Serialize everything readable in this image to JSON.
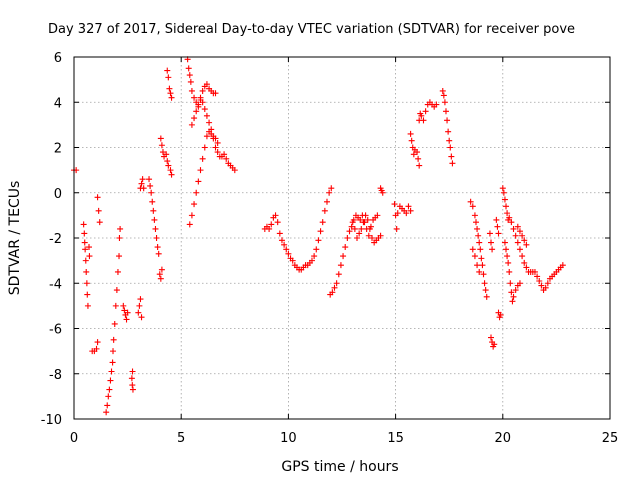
{
  "chart_data": {
    "type": "scatter",
    "title": "Day 327 of 2017, Sidereal Day-to-day VTEC variation (SDTVAR) for receiver pove",
    "xlabel": "GPS time / hours",
    "ylabel": "SDTVAR / TECUs",
    "xlim": [
      0,
      25
    ],
    "ylim": [
      -10,
      6
    ],
    "xticks": [
      "0",
      "5",
      "10",
      "15",
      "20",
      "25"
    ],
    "yticks": [
      "-10",
      "-8",
      "-6",
      "-4",
      "-2",
      "0",
      "2",
      "4",
      "6"
    ],
    "grid": true,
    "marker": "plus",
    "color": "#ff0000",
    "series": [
      {
        "name": "SDTVAR",
        "points": [
          [
            0.0,
            1.0
          ],
          [
            0.1,
            1.0
          ],
          [
            0.45,
            -1.4
          ],
          [
            0.48,
            -1.8
          ],
          [
            0.5,
            -2.2
          ],
          [
            0.52,
            -2.5
          ],
          [
            0.55,
            -3.0
          ],
          [
            0.57,
            -3.5
          ],
          [
            0.6,
            -4.0
          ],
          [
            0.62,
            -4.5
          ],
          [
            0.65,
            -5.0
          ],
          [
            0.7,
            -2.4
          ],
          [
            0.72,
            -2.8
          ],
          [
            0.85,
            -7.0
          ],
          [
            0.95,
            -7.0
          ],
          [
            1.05,
            -6.9
          ],
          [
            1.1,
            -6.6
          ],
          [
            1.1,
            -0.2
          ],
          [
            1.15,
            -0.8
          ],
          [
            1.2,
            -1.3
          ],
          [
            1.5,
            -9.7
          ],
          [
            1.55,
            -9.4
          ],
          [
            1.6,
            -9.0
          ],
          [
            1.65,
            -8.7
          ],
          [
            1.7,
            -8.3
          ],
          [
            1.75,
            -7.9
          ],
          [
            1.8,
            -7.5
          ],
          [
            1.82,
            -7.0
          ],
          [
            1.85,
            -6.5
          ],
          [
            1.9,
            -5.8
          ],
          [
            1.95,
            -5.0
          ],
          [
            2.0,
            -4.3
          ],
          [
            2.05,
            -3.5
          ],
          [
            2.1,
            -2.8
          ],
          [
            2.12,
            -2.0
          ],
          [
            2.15,
            -1.6
          ],
          [
            2.3,
            -5.0
          ],
          [
            2.35,
            -5.2
          ],
          [
            2.4,
            -5.4
          ],
          [
            2.45,
            -5.6
          ],
          [
            2.5,
            -5.3
          ],
          [
            2.7,
            -8.2
          ],
          [
            2.72,
            -8.5
          ],
          [
            2.75,
            -8.7
          ],
          [
            2.73,
            -7.9
          ],
          [
            3.0,
            -5.3
          ],
          [
            3.05,
            -5.0
          ],
          [
            3.1,
            -4.7
          ],
          [
            3.15,
            -5.5
          ],
          [
            3.1,
            0.2
          ],
          [
            3.15,
            0.4
          ],
          [
            3.2,
            0.6
          ],
          [
            3.25,
            0.2
          ],
          [
            3.5,
            0.6
          ],
          [
            3.55,
            0.3
          ],
          [
            3.6,
            0.0
          ],
          [
            3.65,
            -0.4
          ],
          [
            3.7,
            -0.8
          ],
          [
            3.75,
            -1.2
          ],
          [
            3.8,
            -1.6
          ],
          [
            3.85,
            -2.0
          ],
          [
            3.9,
            -2.4
          ],
          [
            3.95,
            -2.7
          ],
          [
            4.0,
            -3.6
          ],
          [
            4.05,
            -3.8
          ],
          [
            4.1,
            -3.4
          ],
          [
            4.05,
            2.4
          ],
          [
            4.1,
            2.1
          ],
          [
            4.15,
            1.8
          ],
          [
            4.2,
            1.6
          ],
          [
            4.3,
            1.7
          ],
          [
            4.35,
            1.4
          ],
          [
            4.4,
            1.2
          ],
          [
            4.5,
            1.0
          ],
          [
            4.55,
            0.8
          ],
          [
            4.35,
            5.4
          ],
          [
            4.4,
            5.1
          ],
          [
            4.45,
            4.6
          ],
          [
            4.5,
            4.4
          ],
          [
            4.55,
            4.2
          ],
          [
            5.3,
            5.9
          ],
          [
            5.35,
            5.5
          ],
          [
            5.4,
            5.2
          ],
          [
            5.45,
            4.9
          ],
          [
            5.5,
            4.5
          ],
          [
            5.6,
            4.2
          ],
          [
            5.7,
            4.0
          ],
          [
            5.8,
            3.8
          ],
          [
            5.9,
            4.2
          ],
          [
            6.0,
            4.5
          ],
          [
            6.1,
            4.7
          ],
          [
            6.2,
            4.8
          ],
          [
            6.3,
            4.6
          ],
          [
            6.4,
            4.5
          ],
          [
            6.5,
            4.4
          ],
          [
            6.6,
            4.4
          ],
          [
            5.4,
            -1.4
          ],
          [
            5.5,
            -1.0
          ],
          [
            5.6,
            -0.5
          ],
          [
            5.7,
            0.0
          ],
          [
            5.8,
            0.5
          ],
          [
            5.9,
            1.0
          ],
          [
            6.0,
            1.5
          ],
          [
            6.1,
            2.0
          ],
          [
            6.2,
            2.5
          ],
          [
            6.3,
            2.7
          ],
          [
            6.4,
            2.6
          ],
          [
            6.5,
            2.5
          ],
          [
            6.6,
            2.4
          ],
          [
            6.7,
            2.2
          ],
          [
            5.5,
            3.0
          ],
          [
            5.6,
            3.3
          ],
          [
            5.7,
            3.6
          ],
          [
            5.8,
            3.9
          ],
          [
            5.9,
            4.1
          ],
          [
            6.0,
            4.0
          ],
          [
            6.1,
            3.7
          ],
          [
            6.2,
            3.4
          ],
          [
            6.3,
            3.1
          ],
          [
            6.4,
            2.8
          ],
          [
            6.5,
            2.4
          ],
          [
            6.6,
            2.0
          ],
          [
            6.7,
            1.8
          ],
          [
            6.8,
            1.6
          ],
          [
            6.9,
            1.6
          ],
          [
            7.0,
            1.7
          ],
          [
            7.1,
            1.5
          ],
          [
            7.2,
            1.3
          ],
          [
            7.3,
            1.2
          ],
          [
            7.4,
            1.1
          ],
          [
            7.5,
            1.0
          ],
          [
            8.9,
            -1.6
          ],
          [
            9.0,
            -1.5
          ],
          [
            9.1,
            -1.6
          ],
          [
            9.2,
            -1.4
          ],
          [
            9.3,
            -1.1
          ],
          [
            9.4,
            -1.0
          ],
          [
            9.5,
            -1.3
          ],
          [
            9.6,
            -1.8
          ],
          [
            9.7,
            -2.1
          ],
          [
            9.8,
            -2.3
          ],
          [
            9.9,
            -2.5
          ],
          [
            10.0,
            -2.7
          ],
          [
            10.1,
            -2.9
          ],
          [
            10.2,
            -3.0
          ],
          [
            10.3,
            -3.2
          ],
          [
            10.4,
            -3.3
          ],
          [
            10.5,
            -3.4
          ],
          [
            10.6,
            -3.4
          ],
          [
            10.7,
            -3.3
          ],
          [
            10.8,
            -3.2
          ],
          [
            10.9,
            -3.2
          ],
          [
            11.0,
            -3.1
          ],
          [
            11.1,
            -3.0
          ],
          [
            11.2,
            -2.8
          ],
          [
            11.3,
            -2.5
          ],
          [
            11.4,
            -2.1
          ],
          [
            11.5,
            -1.7
          ],
          [
            11.6,
            -1.3
          ],
          [
            11.7,
            -0.8
          ],
          [
            11.8,
            -0.4
          ],
          [
            11.9,
            0.0
          ],
          [
            12.0,
            0.2
          ],
          [
            11.95,
            -4.5
          ],
          [
            12.05,
            -4.4
          ],
          [
            12.15,
            -4.2
          ],
          [
            12.25,
            -4.0
          ],
          [
            12.35,
            -3.6
          ],
          [
            12.45,
            -3.2
          ],
          [
            12.55,
            -2.8
          ],
          [
            12.65,
            -2.4
          ],
          [
            12.75,
            -2.0
          ],
          [
            12.85,
            -1.7
          ],
          [
            12.95,
            -1.5
          ],
          [
            13.05,
            -1.2
          ],
          [
            13.15,
            -1.0
          ],
          [
            13.25,
            -1.1
          ],
          [
            13.35,
            -1.2
          ],
          [
            13.45,
            -1.0
          ],
          [
            13.55,
            -1.3
          ],
          [
            13.65,
            -1.6
          ],
          [
            13.75,
            -1.9
          ],
          [
            13.85,
            -1.5
          ],
          [
            13.95,
            -1.2
          ],
          [
            14.05,
            -1.1
          ],
          [
            14.15,
            -1.0
          ],
          [
            13.0,
            -1.3
          ],
          [
            13.1,
            -1.6
          ],
          [
            13.2,
            -2.0
          ],
          [
            13.3,
            -1.8
          ],
          [
            13.4,
            -1.6
          ],
          [
            13.5,
            -1.3
          ],
          [
            13.6,
            -1.0
          ],
          [
            13.7,
            -1.2
          ],
          [
            13.8,
            -1.6
          ],
          [
            13.9,
            -2.0
          ],
          [
            14.0,
            -2.2
          ],
          [
            14.1,
            -2.1
          ],
          [
            14.2,
            -2.0
          ],
          [
            14.3,
            -1.9
          ],
          [
            14.3,
            0.2
          ],
          [
            14.35,
            0.1
          ],
          [
            14.4,
            0.0
          ],
          [
            14.95,
            -0.5
          ],
          [
            15.0,
            -1.0
          ],
          [
            15.05,
            -1.6
          ],
          [
            15.1,
            -0.9
          ],
          [
            15.2,
            -0.6
          ],
          [
            15.3,
            -0.7
          ],
          [
            15.4,
            -0.8
          ],
          [
            15.5,
            -0.9
          ],
          [
            15.6,
            -0.6
          ],
          [
            15.7,
            -0.8
          ],
          [
            15.7,
            2.6
          ],
          [
            15.75,
            2.3
          ],
          [
            15.8,
            2.0
          ],
          [
            15.85,
            1.7
          ],
          [
            15.9,
            1.9
          ],
          [
            16.0,
            1.8
          ],
          [
            16.05,
            1.5
          ],
          [
            16.1,
            1.2
          ],
          [
            16.1,
            3.2
          ],
          [
            16.15,
            3.5
          ],
          [
            16.2,
            3.4
          ],
          [
            16.3,
            3.2
          ],
          [
            16.4,
            3.6
          ],
          [
            16.5,
            3.9
          ],
          [
            16.6,
            4.0
          ],
          [
            16.7,
            3.9
          ],
          [
            16.8,
            3.8
          ],
          [
            16.9,
            3.9
          ],
          [
            17.2,
            4.5
          ],
          [
            17.25,
            4.3
          ],
          [
            17.3,
            4.0
          ],
          [
            17.35,
            3.6
          ],
          [
            17.4,
            3.2
          ],
          [
            17.45,
            2.7
          ],
          [
            17.5,
            2.3
          ],
          [
            17.55,
            2.0
          ],
          [
            17.6,
            1.6
          ],
          [
            17.65,
            1.3
          ],
          [
            18.5,
            -0.4
          ],
          [
            18.6,
            -0.6
          ],
          [
            18.7,
            -1.0
          ],
          [
            18.75,
            -1.3
          ],
          [
            18.8,
            -1.6
          ],
          [
            18.85,
            -1.9
          ],
          [
            18.9,
            -2.2
          ],
          [
            18.95,
            -2.5
          ],
          [
            19.0,
            -2.9
          ],
          [
            19.05,
            -3.2
          ],
          [
            19.1,
            -3.6
          ],
          [
            19.15,
            -4.0
          ],
          [
            19.2,
            -4.3
          ],
          [
            19.25,
            -4.6
          ],
          [
            18.6,
            -2.5
          ],
          [
            18.7,
            -2.8
          ],
          [
            18.8,
            -3.2
          ],
          [
            18.9,
            -3.5
          ],
          [
            19.4,
            -1.8
          ],
          [
            19.45,
            -2.2
          ],
          [
            19.5,
            -2.5
          ],
          [
            19.45,
            -6.4
          ],
          [
            19.5,
            -6.6
          ],
          [
            19.55,
            -6.8
          ],
          [
            19.6,
            -6.7
          ],
          [
            19.7,
            -1.2
          ],
          [
            19.75,
            -1.5
          ],
          [
            19.8,
            -1.8
          ],
          [
            19.8,
            -5.3
          ],
          [
            19.85,
            -5.5
          ],
          [
            19.9,
            -5.4
          ],
          [
            20.0,
            0.2
          ],
          [
            20.05,
            0.0
          ],
          [
            20.1,
            -0.3
          ],
          [
            20.15,
            -0.6
          ],
          [
            20.2,
            -0.9
          ],
          [
            20.25,
            -1.2
          ],
          [
            20.3,
            -1.1
          ],
          [
            20.4,
            -1.3
          ],
          [
            20.5,
            -1.6
          ],
          [
            20.6,
            -1.9
          ],
          [
            20.7,
            -2.2
          ],
          [
            20.8,
            -2.5
          ],
          [
            20.9,
            -2.8
          ],
          [
            21.0,
            -3.1
          ],
          [
            21.1,
            -3.3
          ],
          [
            21.2,
            -3.5
          ],
          [
            21.3,
            -3.5
          ],
          [
            21.4,
            -3.5
          ],
          [
            21.5,
            -3.5
          ],
          [
            20.1,
            -2.2
          ],
          [
            20.15,
            -2.5
          ],
          [
            20.2,
            -2.8
          ],
          [
            20.25,
            -3.1
          ],
          [
            20.3,
            -3.5
          ],
          [
            20.35,
            -4.0
          ],
          [
            20.4,
            -4.4
          ],
          [
            20.45,
            -4.8
          ],
          [
            20.5,
            -4.6
          ],
          [
            20.6,
            -4.3
          ],
          [
            20.7,
            -4.1
          ],
          [
            20.8,
            -4.0
          ],
          [
            20.7,
            -1.5
          ],
          [
            20.8,
            -1.7
          ],
          [
            20.9,
            -1.9
          ],
          [
            21.0,
            -2.1
          ],
          [
            21.1,
            -2.3
          ],
          [
            21.6,
            -3.7
          ],
          [
            21.7,
            -3.9
          ],
          [
            21.8,
            -4.1
          ],
          [
            21.9,
            -4.3
          ],
          [
            22.0,
            -4.2
          ],
          [
            22.1,
            -4.0
          ],
          [
            22.2,
            -3.8
          ],
          [
            22.3,
            -3.7
          ],
          [
            22.4,
            -3.6
          ],
          [
            22.5,
            -3.5
          ],
          [
            22.6,
            -3.4
          ],
          [
            22.7,
            -3.3
          ],
          [
            22.8,
            -3.2
          ]
        ]
      }
    ]
  }
}
